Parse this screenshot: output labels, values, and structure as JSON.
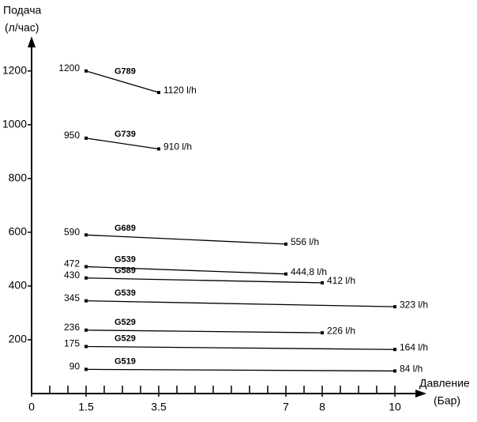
{
  "chart_data": {
    "type": "line",
    "y_label": [
      "Подача",
      "(л/час)"
    ],
    "x_label": [
      "Давление",
      "(Бар)"
    ],
    "xlim": [
      0,
      10.6
    ],
    "ylim": [
      0,
      1320
    ],
    "xticks": [
      0,
      1.5,
      3.5,
      7,
      8,
      10
    ],
    "xminorticks": [
      0.5,
      1,
      1.5,
      2,
      2.5,
      3,
      3.5,
      4,
      4.5,
      5,
      5.5,
      6,
      6.5,
      7,
      7.5,
      8,
      8.5,
      9,
      9.5,
      10
    ],
    "yticks": [
      200,
      400,
      600,
      800,
      1000,
      1200
    ],
    "color": "#000000",
    "series": [
      {
        "name": "G789",
        "x": [
          1.5,
          3.5
        ],
        "values": [
          1200,
          1120
        ],
        "value_labels": [
          "1200",
          "1120 l/h"
        ]
      },
      {
        "name": "G739",
        "x": [
          1.5,
          3.5
        ],
        "values": [
          950,
          910
        ],
        "value_labels": [
          "950",
          "910 l/h"
        ]
      },
      {
        "name": "G689",
        "x": [
          1.5,
          7
        ],
        "values": [
          590,
          556
        ],
        "value_labels": [
          "590",
          "556 l/h"
        ]
      },
      {
        "name": "G539",
        "x": [
          1.5,
          7
        ],
        "values": [
          472,
          444.8
        ],
        "value_labels": [
          "472",
          "444,8 l/h"
        ]
      },
      {
        "name": "G589",
        "x": [
          1.5,
          8
        ],
        "values": [
          430,
          412
        ],
        "value_labels": [
          "430",
          "412 l/h"
        ]
      },
      {
        "name": "G539",
        "x": [
          1.5,
          10
        ],
        "values": [
          345,
          323
        ],
        "value_labels": [
          "345",
          "323 l/h"
        ]
      },
      {
        "name": "G529",
        "x": [
          1.5,
          8
        ],
        "values": [
          236,
          226
        ],
        "value_labels": [
          "236",
          "226 l/h"
        ]
      },
      {
        "name": "G529",
        "x": [
          1.5,
          10
        ],
        "values": [
          175,
          164
        ],
        "value_labels": [
          "175",
          "164 l/h"
        ]
      },
      {
        "name": "G519",
        "x": [
          1.5,
          10
        ],
        "values": [
          90,
          84
        ],
        "value_labels": [
          "90",
          "84 l/h"
        ]
      }
    ]
  }
}
